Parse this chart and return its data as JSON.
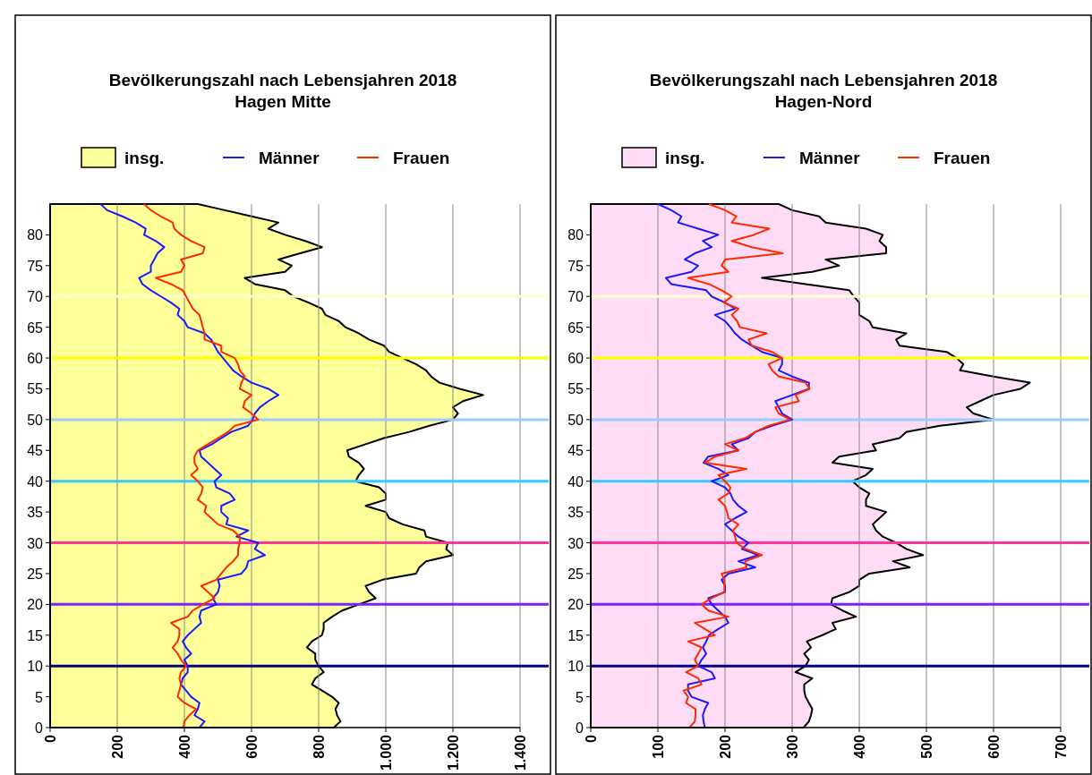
{
  "chart_data": [
    {
      "type": "line",
      "title": "Bevölkerungszahl nach Lebensjahren 2018",
      "subtitle": "Hagen Mitte",
      "orientation": "horizontal",
      "legend": "top",
      "grid": "x",
      "x": [
        0,
        1,
        2,
        3,
        4,
        5,
        6,
        7,
        8,
        9,
        10,
        11,
        12,
        13,
        14,
        15,
        16,
        17,
        18,
        19,
        20,
        21,
        22,
        23,
        24,
        25,
        26,
        27,
        28,
        29,
        30,
        31,
        32,
        33,
        34,
        35,
        36,
        37,
        38,
        39,
        40,
        41,
        42,
        43,
        44,
        45,
        46,
        47,
        48,
        49,
        50,
        51,
        52,
        53,
        54,
        55,
        56,
        57,
        58,
        59,
        60,
        61,
        62,
        63,
        64,
        65,
        66,
        67,
        68,
        69,
        70,
        71,
        72,
        73,
        74,
        75,
        76,
        77,
        78,
        79,
        80,
        81,
        82,
        83,
        84,
        85
      ],
      "xlim": [
        0,
        1400
      ],
      "xticks": [
        0,
        200,
        400,
        600,
        800,
        {
          "value": 1000,
          "label": "1.000"
        },
        {
          "value": 1200,
          "label": "1.200"
        },
        {
          "value": 1400,
          "label": "1.400"
        }
      ],
      "ylim": [
        0,
        85
      ],
      "yticks": [
        0,
        5,
        10,
        15,
        20,
        25,
        30,
        35,
        40,
        45,
        50,
        55,
        60,
        65,
        70,
        75,
        80
      ],
      "ref_lines": [
        {
          "axis": "y",
          "value": 10,
          "color": "#000080"
        },
        {
          "axis": "y",
          "value": 20,
          "color": "#7f1fff"
        },
        {
          "axis": "y",
          "value": 30,
          "color": "#ff3399"
        },
        {
          "axis": "y",
          "value": 40,
          "color": "#33ccff"
        },
        {
          "axis": "y",
          "value": 50,
          "color": "#99ccff"
        },
        {
          "axis": "y",
          "value": 60,
          "color": "#ffff00"
        },
        {
          "axis": "y",
          "value": 70,
          "color": "#ffffcc"
        }
      ],
      "series": [
        {
          "name": "insg.",
          "type": "area",
          "color": "#ffff99",
          "values": [
            845,
            865,
            855,
            850,
            860,
            840,
            810,
            780,
            790,
            815,
            800,
            790,
            790,
            765,
            780,
            810,
            815,
            815,
            840,
            870,
            920,
            970,
            950,
            940,
            990,
            1090,
            1100,
            1120,
            1200,
            1180,
            1185,
            1120,
            1115,
            1050,
            1010,
            1000,
            940,
            1000,
            1000,
            980,
            910,
            920,
            935,
            920,
            890,
            885,
            940,
            995,
            1070,
            1130,
            1200,
            1215,
            1200,
            1230,
            1290,
            1220,
            1160,
            1135,
            1120,
            1090,
            1050,
            1010,
            995,
            950,
            920,
            880,
            860,
            820,
            810,
            770,
            725,
            700,
            610,
            580,
            700,
            720,
            680,
            745,
            810,
            760,
            700,
            650,
            680,
            600,
            520,
            440
          ]
        },
        {
          "name": "Männer",
          "color": "#1a1aff",
          "values": [
            445,
            460,
            430,
            440,
            445,
            420,
            405,
            390,
            395,
            410,
            410,
            400,
            420,
            405,
            395,
            410,
            430,
            450,
            445,
            450,
            495,
            485,
            500,
            505,
            500,
            570,
            585,
            590,
            640,
            610,
            620,
            555,
            590,
            525,
            530,
            510,
            510,
            550,
            535,
            495,
            490,
            510,
            490,
            470,
            450,
            445,
            482,
            510,
            540,
            590,
            603,
            610,
            625,
            650,
            680,
            650,
            600,
            570,
            545,
            530,
            515,
            500,
            490,
            480,
            460,
            410,
            400,
            380,
            385,
            360,
            330,
            300,
            275,
            265,
            300,
            300,
            310,
            320,
            340,
            315,
            280,
            285,
            255,
            215,
            170,
            150
          ]
        },
        {
          "name": "Frauen",
          "color": "#ff2a00",
          "values": [
            397,
            400,
            415,
            435,
            400,
            380,
            385,
            390,
            385,
            390,
            405,
            390,
            380,
            365,
            380,
            385,
            385,
            360,
            410,
            425,
            455,
            490,
            470,
            450,
            495,
            510,
            525,
            545,
            560,
            560,
            565,
            565,
            545,
            500,
            480,
            460,
            465,
            440,
            450,
            455,
            440,
            420,
            440,
            430,
            430,
            440,
            470,
            500,
            530,
            550,
            620,
            600,
            575,
            580,
            600,
            565,
            570,
            580,
            565,
            560,
            550,
            510,
            510,
            460,
            460,
            455,
            450,
            445,
            425,
            415,
            405,
            395,
            360,
            315,
            390,
            400,
            390,
            455,
            460,
            420,
            390,
            370,
            365,
            330,
            300,
            280
          ]
        }
      ]
    },
    {
      "type": "line",
      "title": "Bevölkerungszahl nach Lebensjahren 2018",
      "subtitle": "Hagen-Nord",
      "orientation": "horizontal",
      "legend": "top",
      "grid": "x",
      "x": [
        0,
        1,
        2,
        3,
        4,
        5,
        6,
        7,
        8,
        9,
        10,
        11,
        12,
        13,
        14,
        15,
        16,
        17,
        18,
        19,
        20,
        21,
        22,
        23,
        24,
        25,
        26,
        27,
        28,
        29,
        30,
        31,
        32,
        33,
        34,
        35,
        36,
        37,
        38,
        39,
        40,
        41,
        42,
        43,
        44,
        45,
        46,
        47,
        48,
        49,
        50,
        51,
        52,
        53,
        54,
        55,
        56,
        57,
        58,
        59,
        60,
        61,
        62,
        63,
        64,
        65,
        66,
        67,
        68,
        69,
        70,
        71,
        72,
        73,
        74,
        75,
        76,
        77,
        78,
        79,
        80,
        81,
        82,
        83,
        84,
        85
      ],
      "xlim": [
        0,
        700
      ],
      "xticks": [
        0,
        100,
        200,
        300,
        400,
        500,
        600,
        700
      ],
      "ylim": [
        0,
        85
      ],
      "yticks": [
        0,
        5,
        10,
        15,
        20,
        25,
        30,
        35,
        40,
        45,
        50,
        55,
        60,
        65,
        70,
        75,
        80
      ],
      "ref_lines": [
        {
          "axis": "y",
          "value": 10,
          "color": "#000080"
        },
        {
          "axis": "y",
          "value": 20,
          "color": "#7f1fff"
        },
        {
          "axis": "y",
          "value": 30,
          "color": "#ff3399"
        },
        {
          "axis": "y",
          "value": 40,
          "color": "#33ccff"
        },
        {
          "axis": "y",
          "value": 50,
          "color": "#99ccff"
        },
        {
          "axis": "y",
          "value": 60,
          "color": "#ffff00"
        },
        {
          "axis": "y",
          "value": 70,
          "color": "#ffffcc"
        }
      ],
      "series": [
        {
          "name": "insg.",
          "type": "area",
          "color": "#ffdcf6",
          "values": [
            317,
            325,
            328,
            330,
            325,
            320,
            318,
            318,
            330,
            305,
            320,
            325,
            318,
            328,
            322,
            345,
            365,
            360,
            395,
            375,
            358,
            360,
            385,
            400,
            400,
            415,
            475,
            450,
            495,
            470,
            455,
            435,
            425,
            420,
            430,
            440,
            410,
            410,
            415,
            400,
            390,
            410,
            420,
            360,
            370,
            425,
            420,
            460,
            470,
            520,
            600,
            570,
            560,
            580,
            600,
            640,
            654,
            600,
            550,
            555,
            545,
            530,
            460,
            455,
            470,
            420,
            415,
            400,
            400,
            400,
            392,
            385,
            320,
            255,
            330,
            370,
            350,
            440,
            440,
            430,
            435,
            410,
            350,
            340,
            300,
            280
          ]
        },
        {
          "name": "Männer",
          "color": "#1a1aff",
          "values": [
            170,
            168,
            167,
            170,
            175,
            150,
            145,
            145,
            185,
            180,
            160,
            165,
            172,
            167,
            172,
            176,
            190,
            205,
            200,
            190,
            180,
            175,
            200,
            200,
            195,
            205,
            245,
            220,
            250,
            225,
            235,
            220,
            210,
            200,
            215,
            232,
            220,
            212,
            208,
            200,
            180,
            205,
            190,
            168,
            175,
            220,
            210,
            235,
            245,
            270,
            300,
            285,
            280,
            275,
            300,
            325,
            325,
            300,
            280,
            285,
            285,
            255,
            240,
            225,
            215,
            208,
            200,
            185,
            215,
            200,
            180,
            172,
            120,
            112,
            150,
            160,
            140,
            155,
            180,
            167,
            190,
            160,
            130,
            135,
            120,
            100
          ]
        },
        {
          "name": "Frauen",
          "color": "#ff2a00",
          "values": [
            147,
            155,
            156,
            156,
            142,
            145,
            138,
            165,
            160,
            142,
            160,
            155,
            160,
            165,
            145,
            185,
            170,
            155,
            205,
            175,
            165,
            180,
            199,
            199,
            199,
            195,
            232,
            230,
            255,
            230,
            217,
            215,
            212,
            220,
            205,
            203,
            200,
            190,
            205,
            208,
            200,
            190,
            232,
            170,
            185,
            220,
            200,
            230,
            245,
            265,
            297,
            280,
            275,
            310,
            305,
            326,
            320,
            280,
            270,
            265,
            285,
            270,
            240,
            235,
            262,
            222,
            218,
            210,
            220,
            198,
            210,
            195,
            176,
            145,
            205,
            195,
            200,
            286,
            240,
            210,
            243,
            266,
            210,
            217,
            200,
            176
          ]
        }
      ]
    }
  ]
}
